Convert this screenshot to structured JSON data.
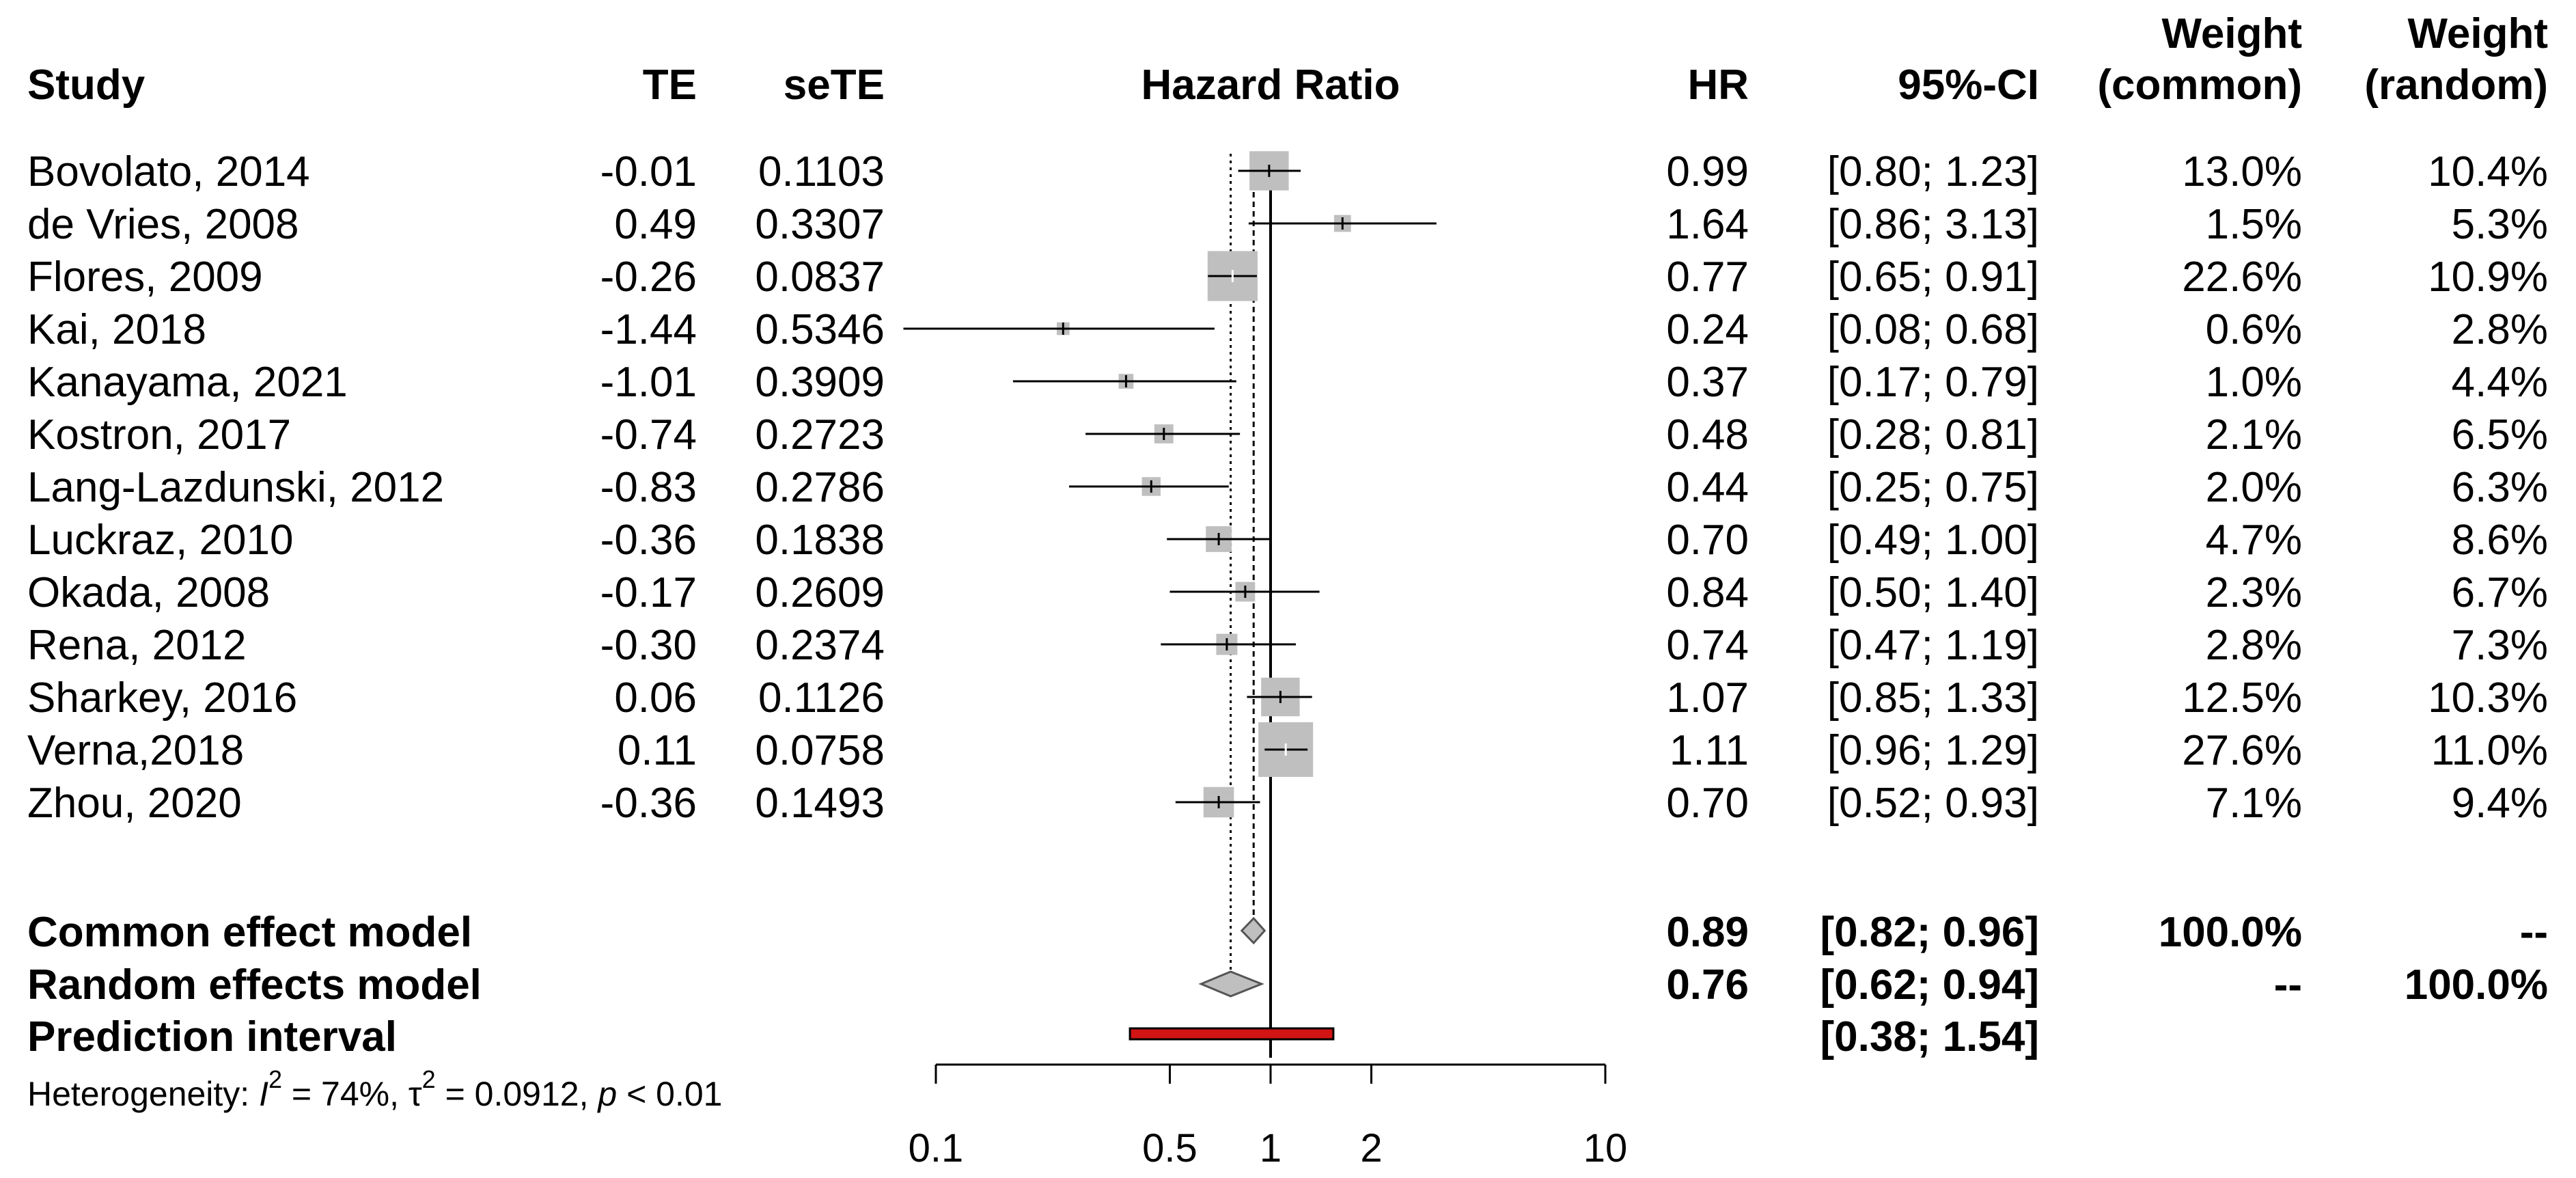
{
  "chart_data": {
    "type": "forest",
    "measure": "Hazard Ratio",
    "headers": {
      "study": "Study",
      "te": "TE",
      "sete": "seTE",
      "plot": "Hazard Ratio",
      "hr": "HR",
      "ci": "95%-CI",
      "w_common_1": "Weight",
      "w_common_2": "(common)",
      "w_random_1": "Weight",
      "w_random_2": "(random)"
    },
    "studies": [
      {
        "name": "Bovolato, 2014",
        "te": "-0.01",
        "sete": "0.1103",
        "hr": 0.99,
        "lo": 0.8,
        "hi": 1.23,
        "hr_text": "0.99",
        "ci_text": "[0.80; 1.23]",
        "w_common": "13.0%",
        "w_random": "10.4%",
        "w": 13.0
      },
      {
        "name": "de Vries, 2008",
        "te": "0.49",
        "sete": "0.3307",
        "hr": 1.64,
        "lo": 0.86,
        "hi": 3.13,
        "hr_text": "1.64",
        "ci_text": "[0.86; 3.13]",
        "w_common": "1.5%",
        "w_random": "5.3%",
        "w": 1.5
      },
      {
        "name": "Flores, 2009",
        "te": "-0.26",
        "sete": "0.0837",
        "hr": 0.77,
        "lo": 0.65,
        "hi": 0.91,
        "hr_text": "0.77",
        "ci_text": "[0.65; 0.91]",
        "w_common": "22.6%",
        "w_random": "10.9%",
        "w": 22.6
      },
      {
        "name": "Kai, 2018",
        "te": "-1.44",
        "sete": "0.5346",
        "hr": 0.24,
        "lo": 0.08,
        "hi": 0.68,
        "hr_text": "0.24",
        "ci_text": "[0.08; 0.68]",
        "w_common": "0.6%",
        "w_random": "2.8%",
        "w": 0.6
      },
      {
        "name": "Kanayama, 2021",
        "te": "-1.01",
        "sete": "0.3909",
        "hr": 0.37,
        "lo": 0.17,
        "hi": 0.79,
        "hr_text": "0.37",
        "ci_text": "[0.17; 0.79]",
        "w_common": "1.0%",
        "w_random": "4.4%",
        "w": 1.0
      },
      {
        "name": "Kostron, 2017",
        "te": "-0.74",
        "sete": "0.2723",
        "hr": 0.48,
        "lo": 0.28,
        "hi": 0.81,
        "hr_text": "0.48",
        "ci_text": "[0.28; 0.81]",
        "w_common": "2.1%",
        "w_random": "6.5%",
        "w": 2.1
      },
      {
        "name": "Lang-Lazdunski, 2012",
        "te": "-0.83",
        "sete": "0.2786",
        "hr": 0.44,
        "lo": 0.25,
        "hi": 0.75,
        "hr_text": "0.44",
        "ci_text": "[0.25; 0.75]",
        "w_common": "2.0%",
        "w_random": "6.3%",
        "w": 2.0
      },
      {
        "name": "Luckraz, 2010",
        "te": "-0.36",
        "sete": "0.1838",
        "hr": 0.7,
        "lo": 0.49,
        "hi": 1.0,
        "hr_text": "0.70",
        "ci_text": "[0.49; 1.00]",
        "w_common": "4.7%",
        "w_random": "8.6%",
        "w": 4.7
      },
      {
        "name": "Okada, 2008",
        "te": "-0.17",
        "sete": "0.2609",
        "hr": 0.84,
        "lo": 0.5,
        "hi": 1.4,
        "hr_text": "0.84",
        "ci_text": "[0.50; 1.40]",
        "w_common": "2.3%",
        "w_random": "6.7%",
        "w": 2.3
      },
      {
        "name": "Rena, 2012",
        "te": "-0.30",
        "sete": "0.2374",
        "hr": 0.74,
        "lo": 0.47,
        "hi": 1.19,
        "hr_text": "0.74",
        "ci_text": "[0.47; 1.19]",
        "w_common": "2.8%",
        "w_random": "7.3%",
        "w": 2.8
      },
      {
        "name": "Sharkey, 2016",
        "te": "0.06",
        "sete": "0.1126",
        "hr": 1.07,
        "lo": 0.85,
        "hi": 1.33,
        "hr_text": "1.07",
        "ci_text": "[0.85; 1.33]",
        "w_common": "12.5%",
        "w_random": "10.3%",
        "w": 12.5
      },
      {
        "name": "Verna,2018",
        "te": "0.11",
        "sete": "0.0758",
        "hr": 1.11,
        "lo": 0.96,
        "hi": 1.29,
        "hr_text": "1.11",
        "ci_text": "[0.96; 1.29]",
        "w_common": "27.6%",
        "w_random": "11.0%",
        "w": 27.6
      },
      {
        "name": "Zhou, 2020",
        "te": "-0.36",
        "sete": "0.1493",
        "hr": 0.7,
        "lo": 0.52,
        "hi": 0.93,
        "hr_text": "0.70",
        "ci_text": "[0.52; 0.93]",
        "w_common": "7.1%",
        "w_random": "9.4%",
        "w": 7.1
      }
    ],
    "common": {
      "label": "Common effect model",
      "hr": 0.89,
      "lo": 0.82,
      "hi": 0.96,
      "hr_text": "0.89",
      "ci_text": "[0.82; 0.96]",
      "w_common": "100.0%",
      "w_random": "--"
    },
    "random": {
      "label": "Random effects model",
      "hr": 0.76,
      "lo": 0.62,
      "hi": 0.94,
      "hr_text": "0.76",
      "ci_text": "[0.62; 0.94]",
      "w_common": "--",
      "w_random": "100.0%"
    },
    "prediction": {
      "label": "Prediction interval",
      "lo": 0.38,
      "hi": 1.54,
      "ci_text": "[0.38; 1.54]"
    },
    "heterogeneity": {
      "prefix": "Heterogeneity: ",
      "i2_symbol": "I",
      "i2_value": " = 74%, ",
      "tau_symbol": "τ",
      "tau_value": " = 0.0912, ",
      "p_symbol": "p",
      "p_value": " < 0.01",
      "sup": "2"
    },
    "x_axis": {
      "scale": "log",
      "range": [
        0.1,
        10
      ],
      "ticks": [
        0.1,
        0.5,
        1,
        2,
        10
      ],
      "tick_labels": [
        "0.1",
        "0.5",
        "1",
        "2",
        "10"
      ],
      "reference_line": 1
    },
    "colors": {
      "square": "#bfbfbf",
      "diamond": "#bfbfbf",
      "prediction": "#d21414",
      "line": "#000000"
    }
  }
}
